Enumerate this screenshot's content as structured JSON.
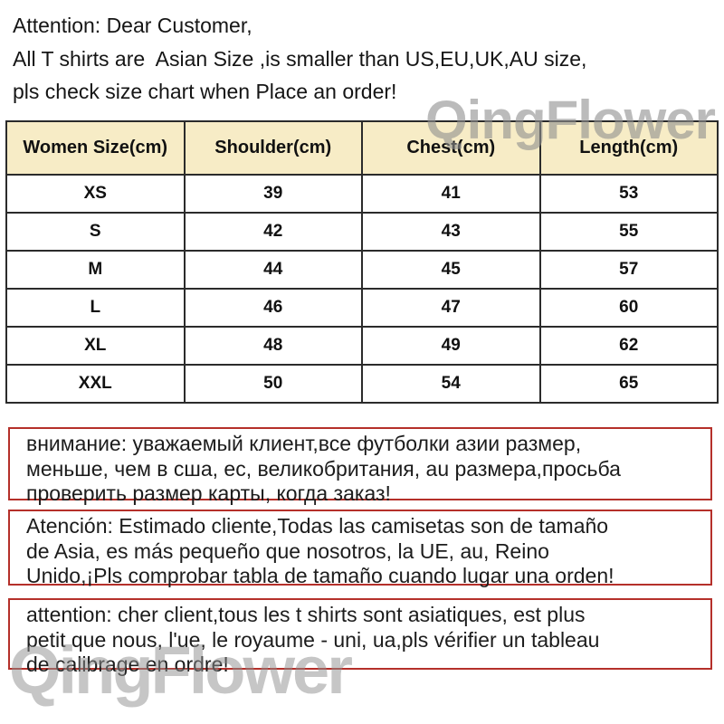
{
  "intro": {
    "lines": [
      "Attention: Dear Customer,",
      "All T shirts are  Asian Size ,is smaller than US,EU,UK,AU size,",
      "pls check size chart when Place an order!"
    ]
  },
  "watermarks": {
    "top": "QingFlower",
    "bottom": "QingFlower"
  },
  "table": {
    "headers": [
      "Women Size(cm)",
      "Shoulder(cm)",
      "Chest(cm)",
      "Length(cm)"
    ],
    "rows": [
      {
        "size": "XS",
        "shoulder": "39",
        "chest": "41",
        "length": "53"
      },
      {
        "size": "S",
        "shoulder": "42",
        "chest": "43",
        "length": "55"
      },
      {
        "size": "M",
        "shoulder": "44",
        "chest": "45",
        "length": "57"
      },
      {
        "size": "L",
        "shoulder": "46",
        "chest": "47",
        "length": "60"
      },
      {
        "size": "XL",
        "shoulder": "48",
        "chest": "49",
        "length": "62"
      },
      {
        "size": "XXL",
        "shoulder": "50",
        "chest": "54",
        "length": "65"
      }
    ]
  },
  "notes": {
    "russian": {
      "lines": [
        "внимание: уважаемый клиент,все футболки азии размер,",
        "меньше, чем в сша, ес, великобритания, au размера,просьба",
        "проверить размер карты, когда заказ!"
      ]
    },
    "spanish": {
      "lines": [
        "Atención: Estimado cliente,Todas las camisetas son de tamaño",
        "de Asia, es más pequeño que nosotros, la UE, au, Reino",
        "Unido,¡Pls comprobar tabla de tamaño cuando lugar una orden!"
      ]
    },
    "french": {
      "lines": [
        "attention: cher client,tous les t shirts sont asiatiques, est plus",
        "petit que nous, l'ue, le royaume - uni, ua,pls vérifier un tableau",
        "de calibrage en ordre!"
      ]
    }
  },
  "colors": {
    "header_bg": "#f7ecc6",
    "table_border": "#2b2b2b",
    "note_border": "#b5302a",
    "watermark": "#8f8f8f",
    "text": "#151515"
  }
}
